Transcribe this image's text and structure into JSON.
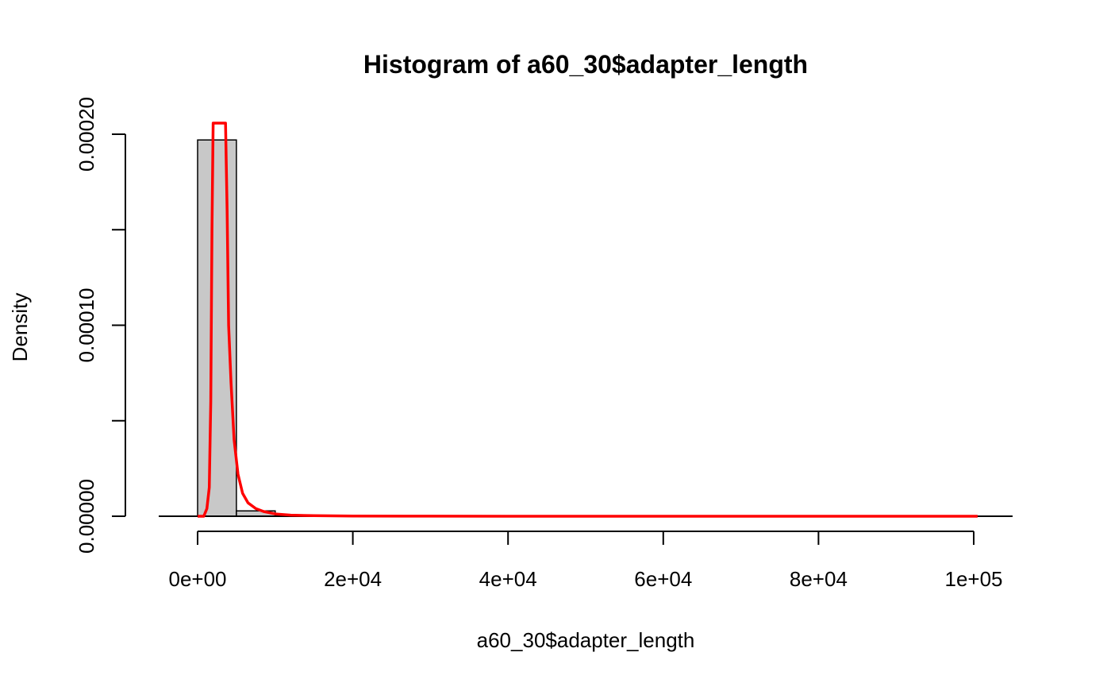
{
  "chart_data": {
    "type": "bar",
    "title": "Histogram of a60_30$adapter_length",
    "xlabel": "a60_30$adapter_length",
    "ylabel": "Density",
    "xlim": [
      0,
      100000
    ],
    "ylim": [
      0,
      0.0002
    ],
    "x_ticks": [
      {
        "value": 0,
        "label": "0e+00"
      },
      {
        "value": 20000,
        "label": "2e+04"
      },
      {
        "value": 40000,
        "label": "4e+04"
      },
      {
        "value": 60000,
        "label": "6e+04"
      },
      {
        "value": 80000,
        "label": "8e+04"
      },
      {
        "value": 100000,
        "label": "1e+05"
      }
    ],
    "y_ticks": [
      {
        "value": 0,
        "label": "0.00000"
      },
      {
        "value": 5e-05,
        "label": ""
      },
      {
        "value": 0.0001,
        "label": "0.00010"
      },
      {
        "value": 0.00015,
        "label": ""
      },
      {
        "value": 0.0002,
        "label": "0.00020"
      }
    ],
    "bins": [
      {
        "start": 0,
        "end": 5000,
        "density": 0.000197
      },
      {
        "start": 5000,
        "end": 10000,
        "density": 2.8e-06
      },
      {
        "start": 10000,
        "end": 15000,
        "density": 2e-07
      }
    ],
    "density_curve": {
      "color": "#ff0000",
      "x": [
        0,
        800,
        1200,
        1500,
        1700,
        1850,
        2000,
        3600,
        3800,
        4000,
        4300,
        4700,
        5200,
        5800,
        6500,
        7500,
        8500,
        10000,
        12000,
        15000,
        20000,
        30000,
        50000,
        100500
      ],
      "y": [
        0,
        0,
        4e-06,
        1.5e-05,
        6e-05,
        0.00015,
        0.00022,
        0.00022,
        0.00016,
        0.0001,
        7e-05,
        4e-05,
        2.2e-05,
        1.2e-05,
        7e-06,
        4e-06,
        2.5e-06,
        1.2e-06,
        6e-07,
        3e-07,
        1e-07,
        5e-08,
        0,
        0
      ]
    }
  }
}
